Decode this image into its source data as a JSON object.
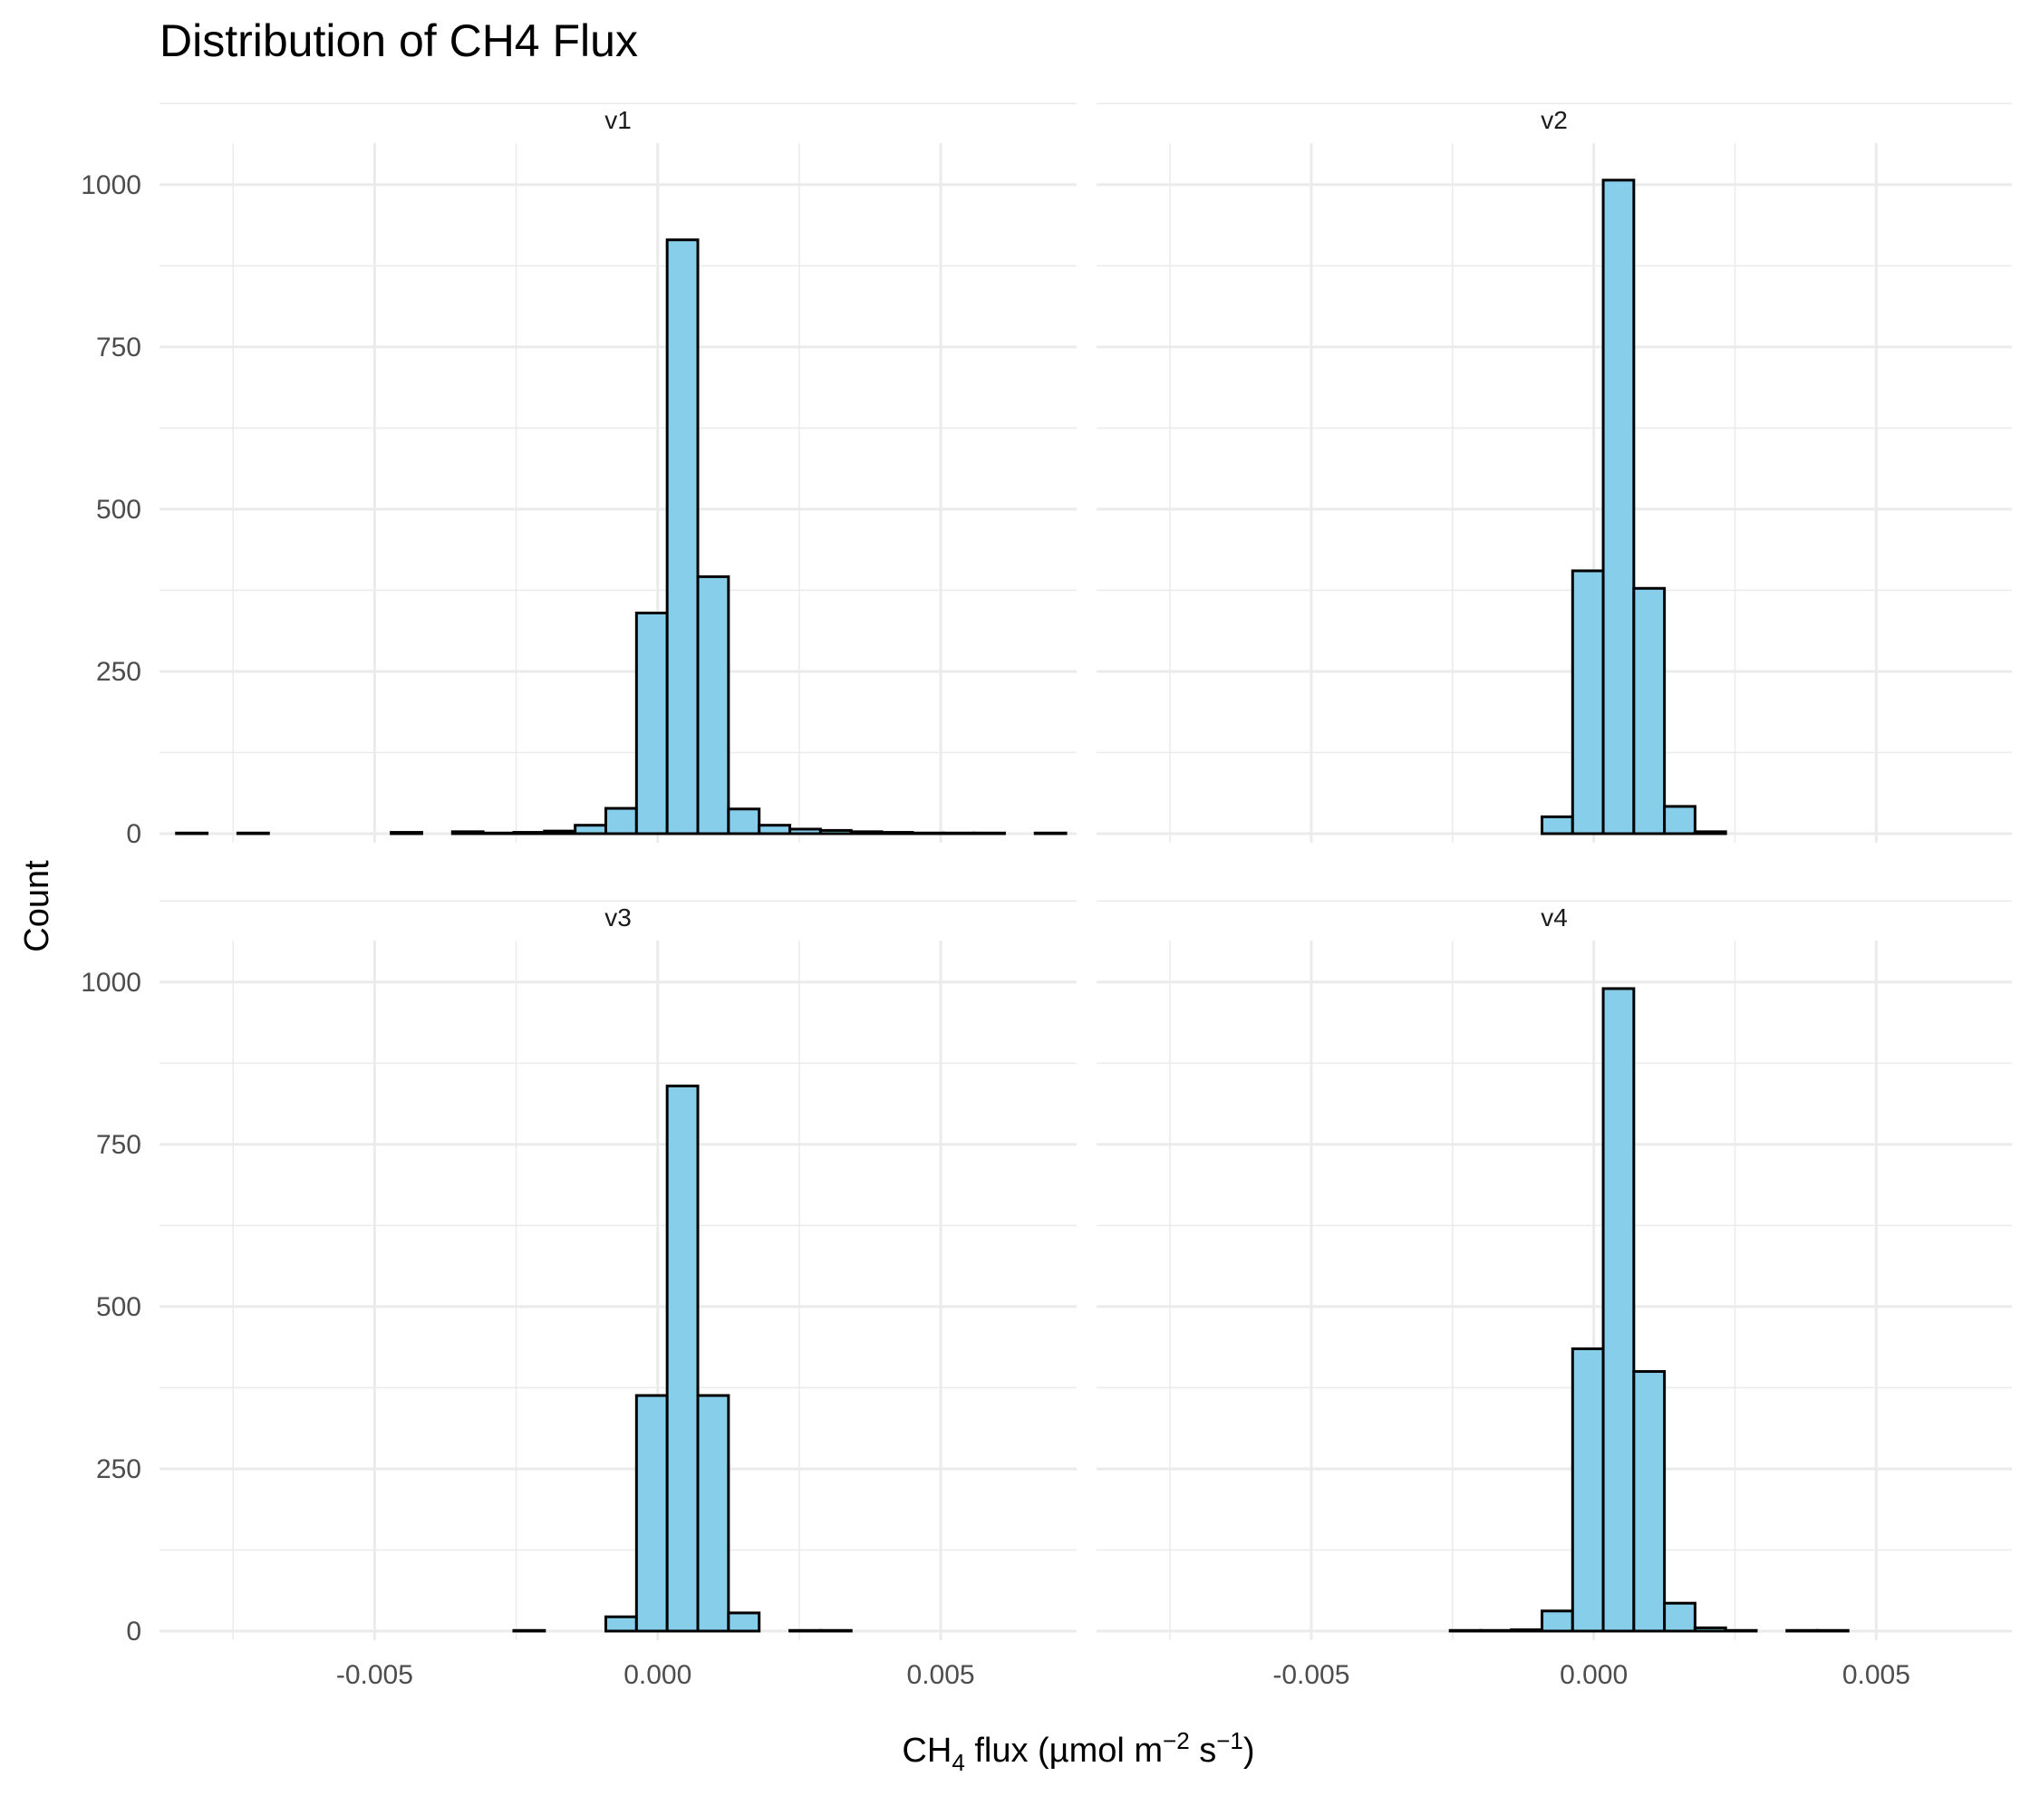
{
  "chart_data": {
    "type": "bar",
    "title": "Distribution of CH4 Flux",
    "xlabel": "CH4 flux (µmol m−2 s−1)",
    "xlabel_parts": {
      "a": "CH",
      "b": "4",
      "c": " flux (µmol m",
      "d": "−2",
      "e": " s",
      "f": "−1",
      "g": ")"
    },
    "ylabel": "Count",
    "xlim": [
      -0.0088,
      0.0074
    ],
    "ylim": [
      0,
      1050
    ],
    "x_ticks": [
      -0.005,
      0.0,
      0.005
    ],
    "x_tick_labels": [
      "-0.005",
      "0.000",
      "0.005"
    ],
    "y_ticks": [
      0,
      250,
      500,
      750,
      1000
    ],
    "y_tick_labels": [
      "0",
      "250",
      "500",
      "750",
      "1000"
    ],
    "grid": true,
    "legend": "none",
    "bin_start": -0.0085,
    "bin_width": 0.0005417,
    "fill_color": "#87ceeb",
    "edge_color": "#000000",
    "facets": [
      {
        "name": "v1",
        "values": [
          1,
          0,
          1,
          0,
          0,
          0,
          0,
          2,
          0,
          3,
          1,
          2,
          4,
          13,
          39,
          340,
          915,
          396,
          38,
          13,
          7,
          5,
          3,
          2,
          1,
          1,
          1,
          0,
          1,
          0
        ]
      },
      {
        "name": "v2",
        "values": [
          0,
          0,
          0,
          0,
          0,
          0,
          0,
          0,
          0,
          0,
          0,
          0,
          0,
          0,
          26,
          405,
          1007,
          378,
          42,
          3,
          0,
          0,
          0,
          0,
          0,
          0,
          0,
          0,
          0,
          0
        ]
      },
      {
        "name": "v3",
        "values": [
          0,
          0,
          0,
          0,
          0,
          0,
          0,
          0,
          0,
          0,
          0,
          1,
          0,
          0,
          22,
          363,
          840,
          363,
          28,
          0,
          1,
          1,
          0,
          0,
          0,
          0,
          0,
          0,
          0,
          0
        ]
      },
      {
        "name": "v4",
        "values": [
          0,
          0,
          0,
          0,
          0,
          0,
          0,
          0,
          0,
          0,
          0,
          1,
          1,
          2,
          31,
          435,
          990,
          400,
          43,
          5,
          1,
          0,
          1,
          1,
          0,
          0,
          0,
          0,
          0,
          0
        ]
      }
    ]
  }
}
